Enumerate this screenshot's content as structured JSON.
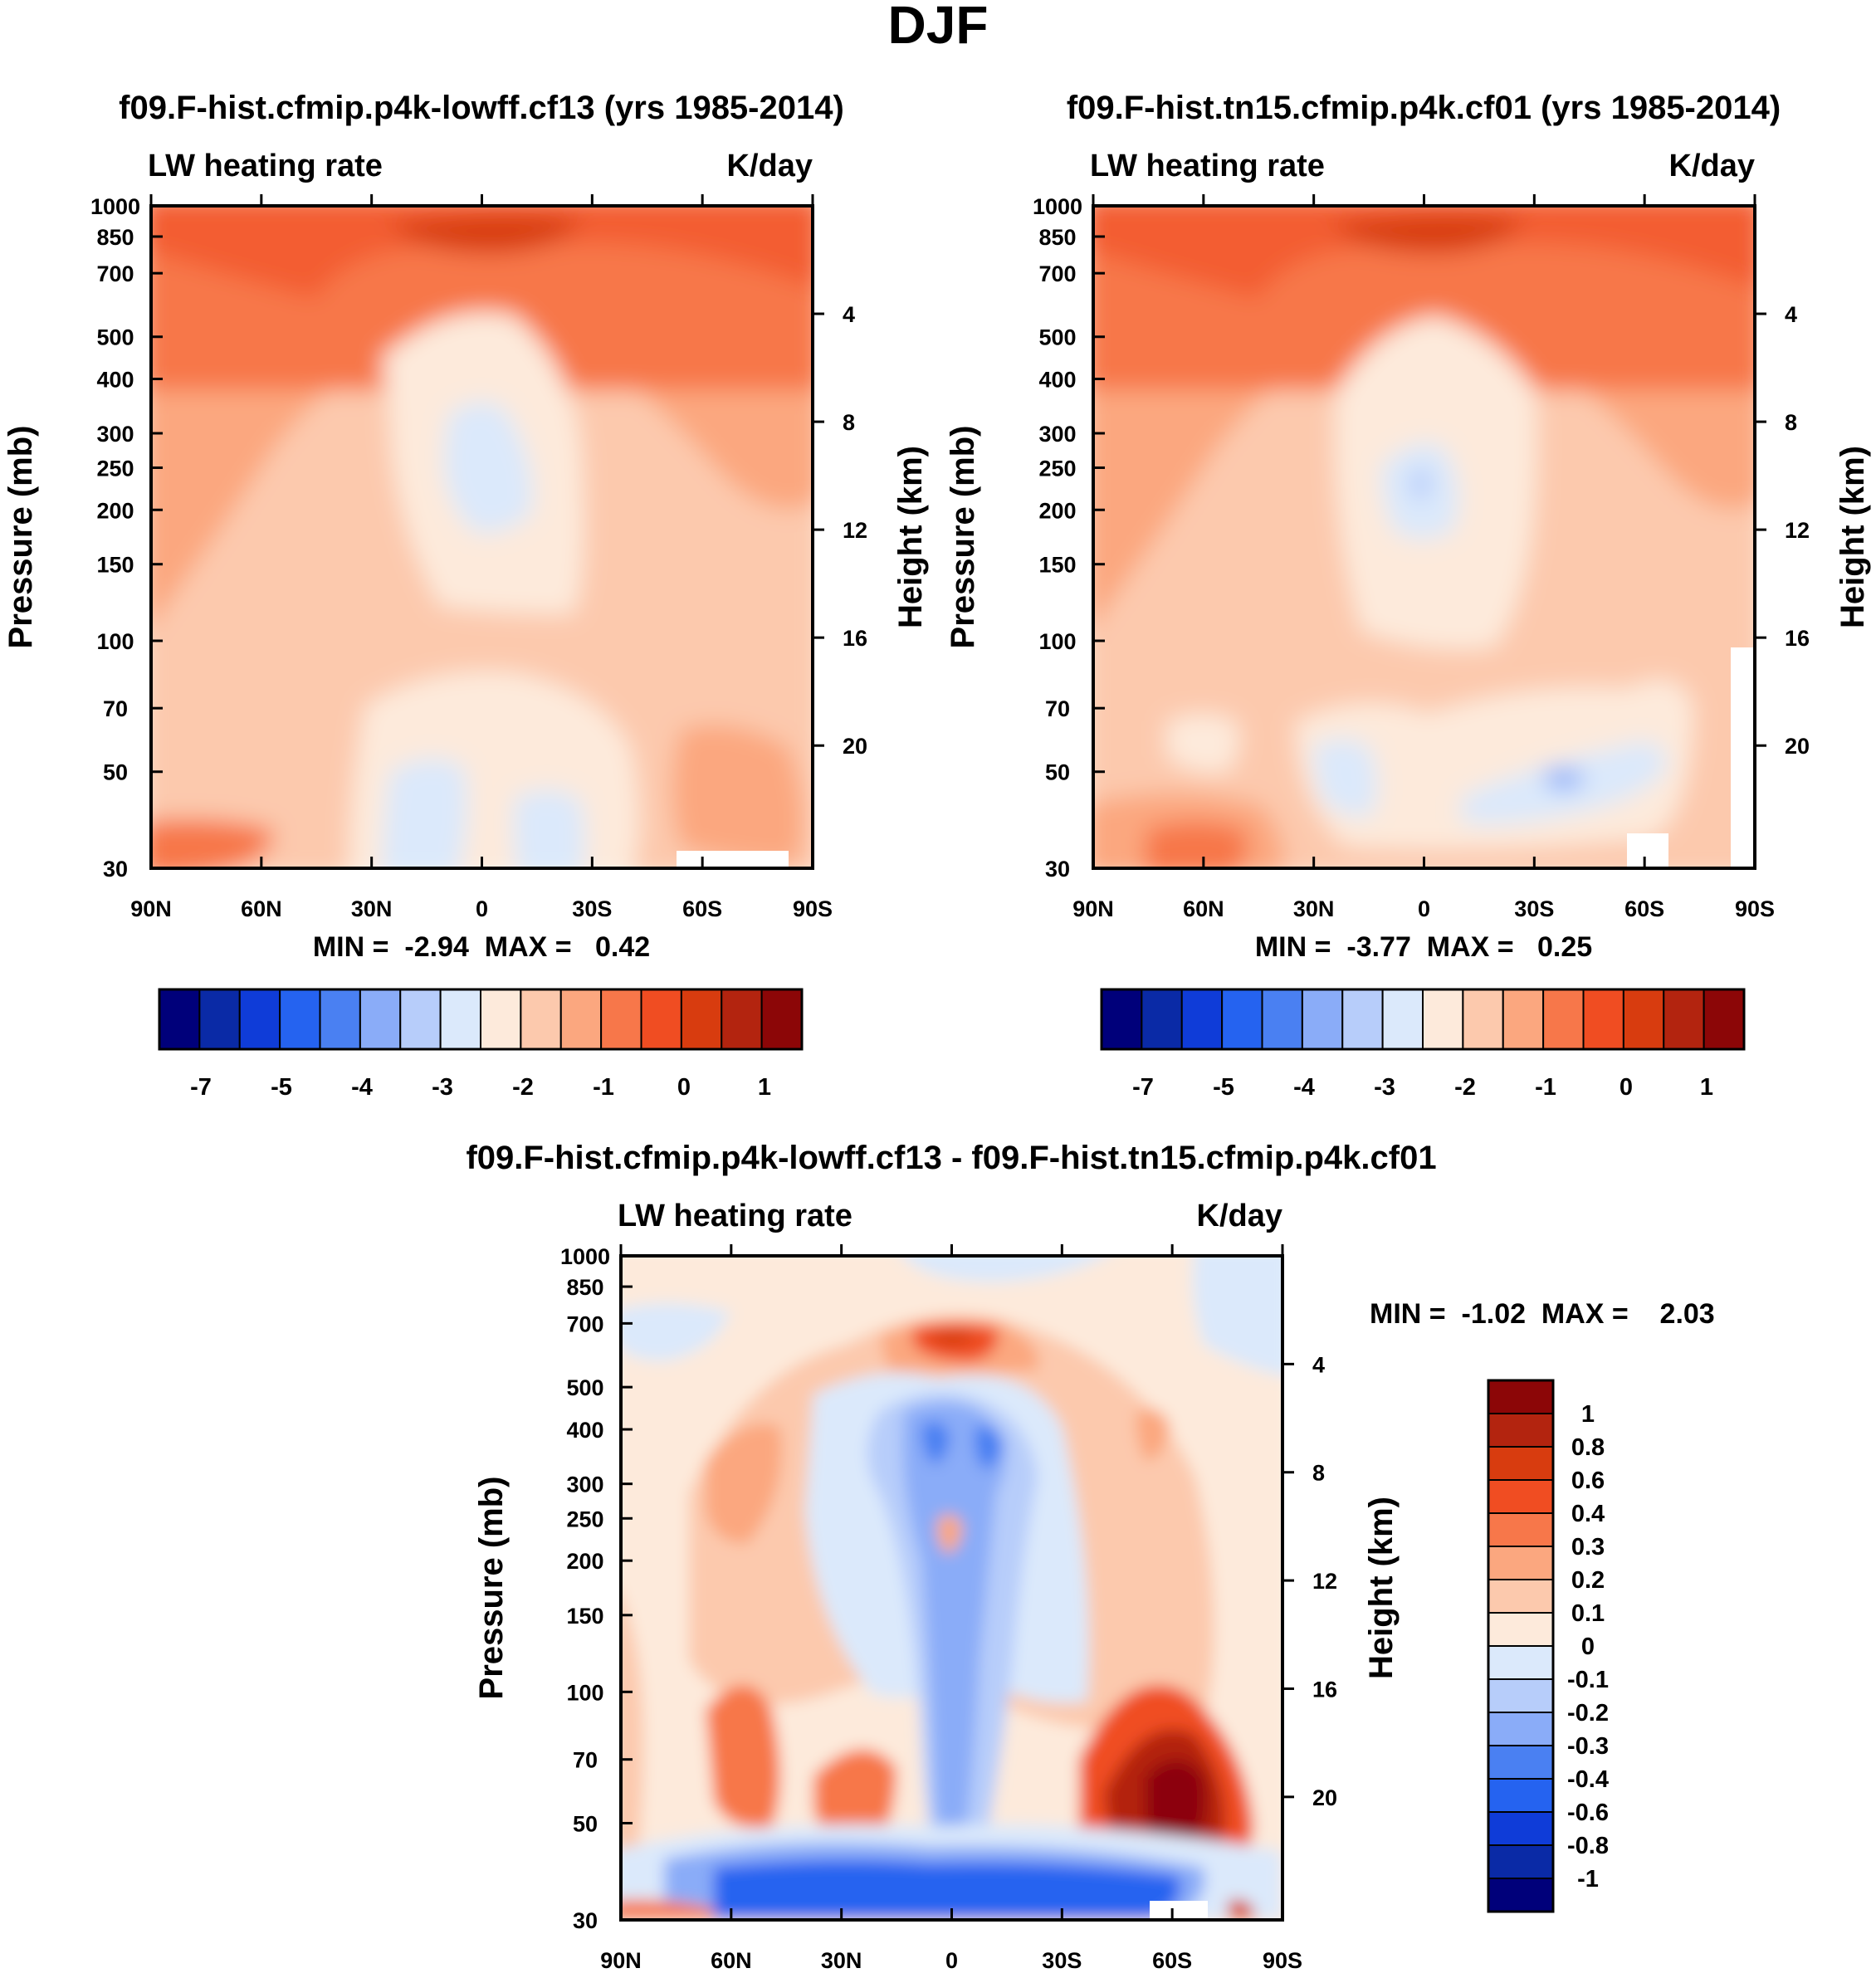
{
  "figure": {
    "suptitle": "DJF",
    "field_label": "LW heating rate",
    "units": "K/day",
    "ylabel_left": "Pressure (mb)",
    "ylabel_right": "Height (km)",
    "pressure_ticks": [
      30,
      50,
      70,
      100,
      150,
      200,
      250,
      300,
      400,
      500,
      700,
      850,
      1000
    ],
    "height_ticks": [
      20,
      16,
      12,
      8,
      4
    ],
    "lat_ticks": [
      "90N",
      "60N",
      "30N",
      "0",
      "30S",
      "60S",
      "90S"
    ]
  },
  "chart_data": [
    {
      "type": "heatmap",
      "title": "f09.F-hist.cfmip.p4k-lowff.cf13 (yrs 1985-2014)",
      "left_label": "LW heating rate",
      "right_label": "K/day",
      "xlabel": "",
      "ylabel": "Pressure (mb)",
      "ylabel_right": "Height (km)",
      "x": [
        "90N",
        "60N",
        "30N",
        "0",
        "30S",
        "60S",
        "90S"
      ],
      "xlim": [
        90,
        -90
      ],
      "ylim": [
        1000,
        30
      ],
      "y_scale": "log",
      "min": -2.94,
      "max": 0.42,
      "min_text": "MIN =  -2.94  MAX =   0.42",
      "colorbar": {
        "orientation": "horizontal",
        "labels": [
          "-7",
          "-5",
          "-4",
          "-3",
          "-2",
          "-1",
          "0",
          "1"
        ],
        "colors": [
          "#00007a",
          "#0a2aa6",
          "#0f3cd8",
          "#2563f0",
          "#4a80f2",
          "#8aacf8",
          "#b7cdfa",
          "#dbe9fb",
          "#fdeadb",
          "#fcc9ad",
          "#fba77f",
          "#f7774a",
          "#f04d22",
          "#d83c0f",
          "#b3240f",
          "#8c0607"
        ]
      }
    },
    {
      "type": "heatmap",
      "title": "f09.F-hist.tn15.cfmip.p4k.cf01 (yrs 1985-2014)",
      "left_label": "LW heating rate",
      "right_label": "K/day",
      "xlabel": "",
      "ylabel": "Pressure (mb)",
      "ylabel_right": "Height (km)",
      "x": [
        "90N",
        "60N",
        "30N",
        "0",
        "30S",
        "60S",
        "90S"
      ],
      "xlim": [
        90,
        -90
      ],
      "ylim": [
        1000,
        30
      ],
      "y_scale": "log",
      "min": -3.77,
      "max": 0.25,
      "min_text": "MIN =  -3.77  MAX =   0.25",
      "colorbar": {
        "orientation": "horizontal",
        "labels": [
          "-7",
          "-5",
          "-4",
          "-3",
          "-2",
          "-1",
          "0",
          "1"
        ],
        "colors": [
          "#00007a",
          "#0a2aa6",
          "#0f3cd8",
          "#2563f0",
          "#4a80f2",
          "#8aacf8",
          "#b7cdfa",
          "#dbe9fb",
          "#fdeadb",
          "#fcc9ad",
          "#fba77f",
          "#f7774a",
          "#f04d22",
          "#d83c0f",
          "#b3240f",
          "#8c0607"
        ]
      }
    },
    {
      "type": "heatmap",
      "title": "f09.F-hist.cfmip.p4k-lowff.cf13 - f09.F-hist.tn15.cfmip.p4k.cf01",
      "left_label": "LW heating rate",
      "right_label": "K/day",
      "xlabel": "",
      "ylabel": "Pressure (mb)",
      "ylabel_right": "Height (km)",
      "x": [
        "90N",
        "60N",
        "30N",
        "0",
        "30S",
        "60S",
        "90S"
      ],
      "xlim": [
        90,
        -90
      ],
      "ylim": [
        1000,
        30
      ],
      "y_scale": "log",
      "min": -1.02,
      "max": 2.03,
      "min_text": "MIN =  -1.02  MAX =    2.03",
      "colorbar": {
        "orientation": "vertical",
        "labels": [
          "1",
          "0.8",
          "0.6",
          "0.4",
          "0.3",
          "0.2",
          "0.1",
          "0",
          "-0.1",
          "-0.2",
          "-0.3",
          "-0.4",
          "-0.6",
          "-0.8",
          "-1"
        ],
        "colors": [
          "#00007a",
          "#0a2aa6",
          "#0f3cd8",
          "#2563f0",
          "#4a80f2",
          "#8aacf8",
          "#b7cdfa",
          "#dbe9fb",
          "#fdeadb",
          "#fcc9ad",
          "#fba77f",
          "#f7774a",
          "#f04d22",
          "#d83c0f",
          "#b3240f",
          "#8c0607"
        ]
      }
    }
  ]
}
